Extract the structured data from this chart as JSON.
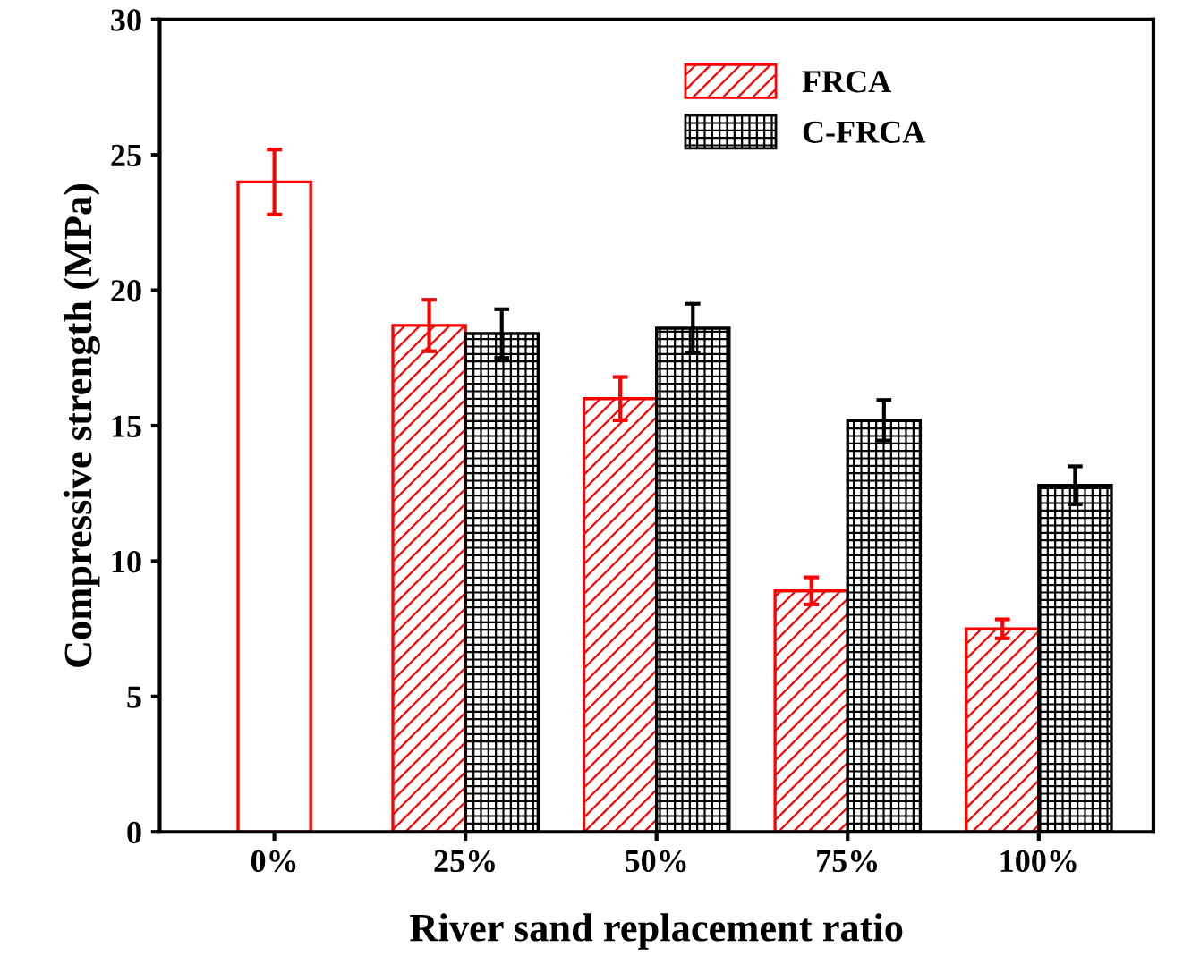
{
  "chart_data": {
    "type": "bar",
    "xlabel": "River sand replacement ratio",
    "ylabel": "Compressive strength (MPa)",
    "categories": [
      "0%",
      "25%",
      "50%",
      "75%",
      "100%"
    ],
    "series": [
      {
        "color": "#ff0000",
        "values": [
          24,
          null,
          null,
          null,
          null
        ],
        "errors": [
          1.2,
          null,
          null,
          null,
          null
        ]
      },
      {
        "name": "FRCA",
        "color": "#ff0000",
        "values": [
          null,
          18.7,
          16,
          8.9,
          7.5
        ],
        "errors": [
          null,
          0.95,
          0.8,
          0.5,
          0.35
        ]
      },
      {
        "name": "C-FRCA",
        "color": "#000000",
        "values": [
          null,
          18.4,
          18.6,
          15.2,
          12.8
        ],
        "errors": [
          null,
          0.9,
          0.9,
          0.75,
          0.7
        ]
      }
    ],
    "ylim": [
      0,
      30
    ],
    "yticks": [
      0,
      5,
      10,
      15,
      20,
      25,
      30
    ],
    "grid": false,
    "legend": "top right"
  }
}
